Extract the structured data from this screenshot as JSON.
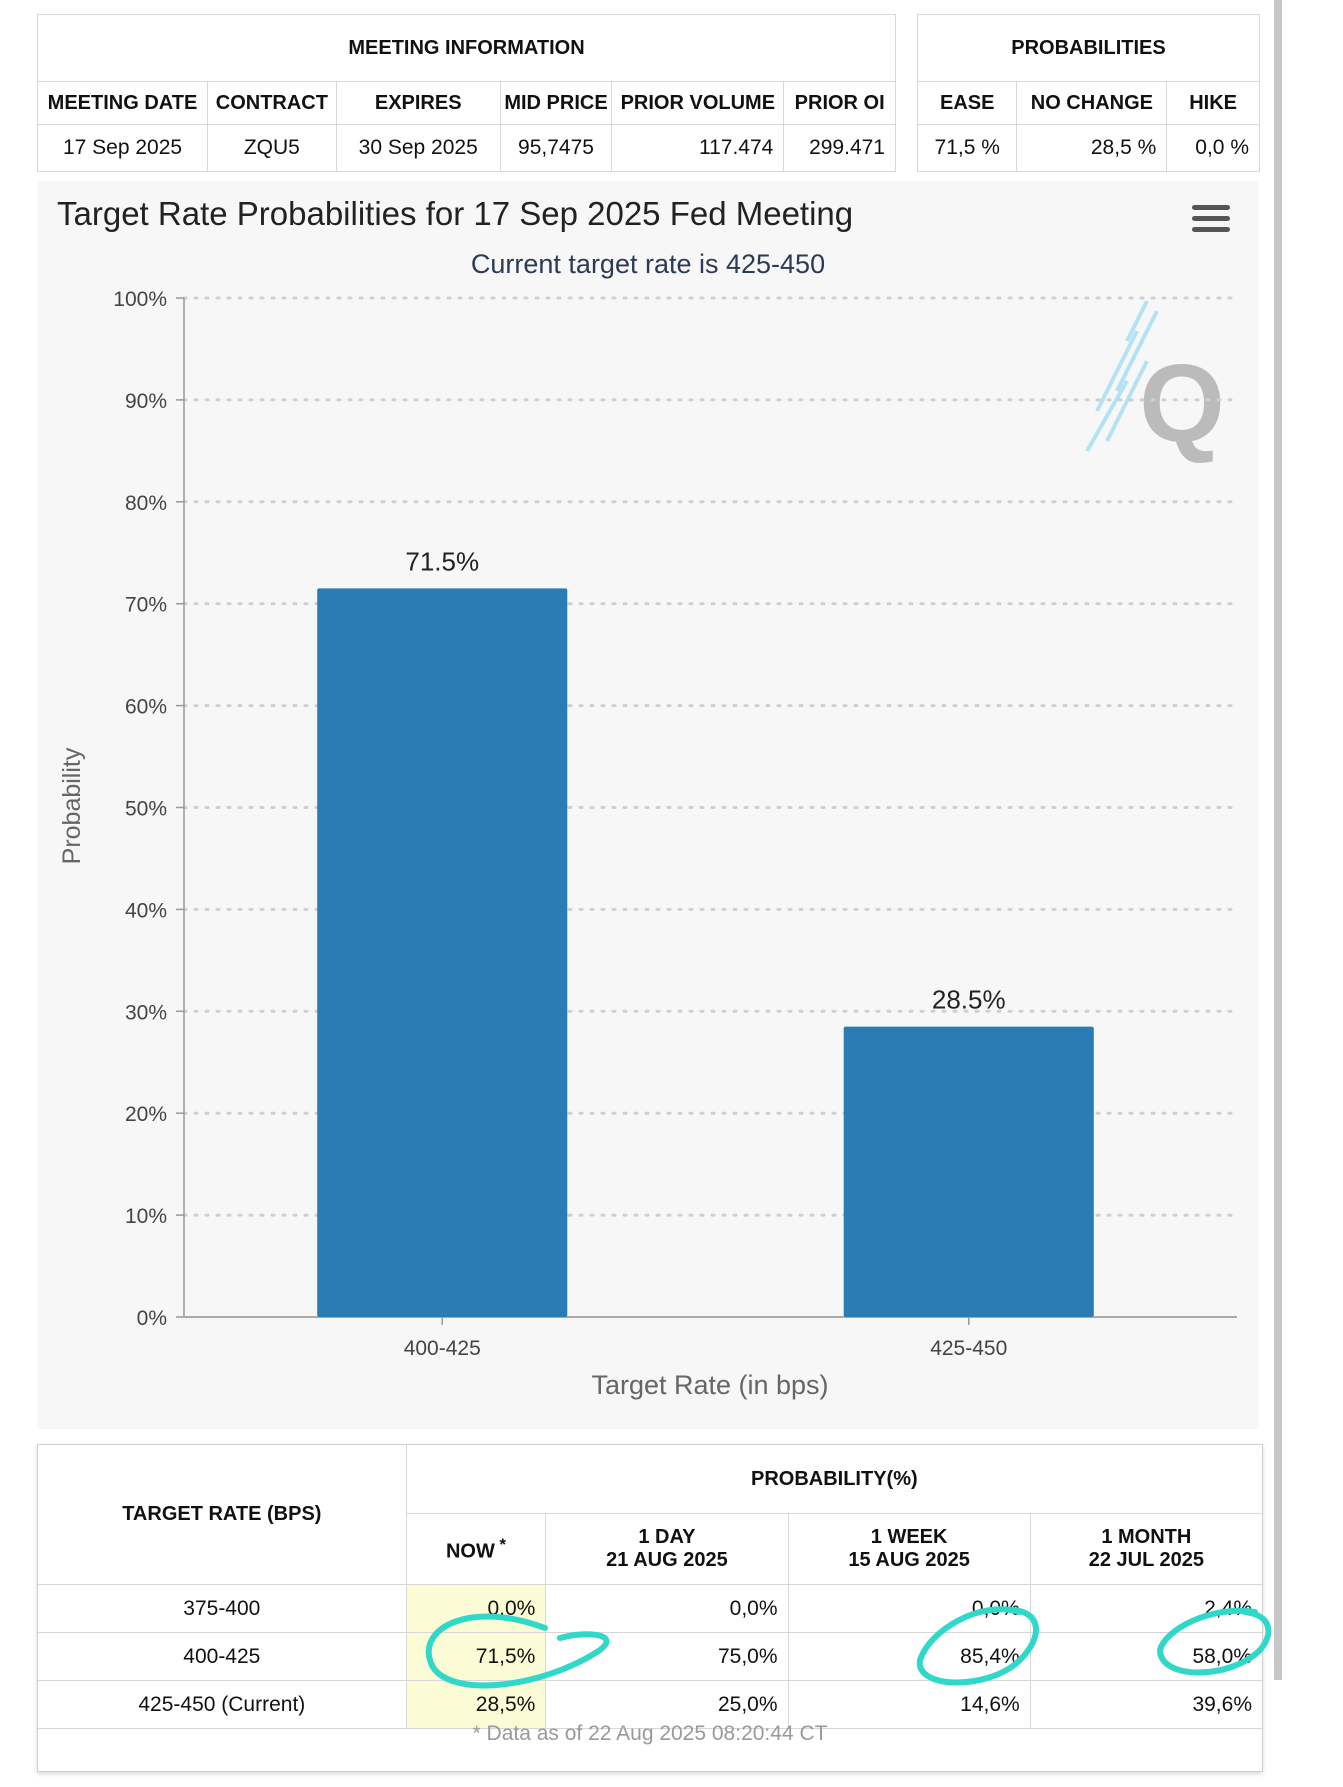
{
  "meeting_info": {
    "title": "MEETING INFORMATION",
    "headers": [
      "MEETING DATE",
      "CONTRACT",
      "EXPIRES",
      "MID PRICE",
      "PRIOR VOLUME",
      "PRIOR OI"
    ],
    "values": [
      "17 Sep 2025",
      "ZQU5",
      "30 Sep 2025",
      "95,7475",
      "117.474",
      "299.471"
    ]
  },
  "probabilities": {
    "title": "PROBABILITIES",
    "headers": [
      "EASE",
      "NO CHANGE",
      "HIKE"
    ],
    "values": [
      "71,5 %",
      "28,5 %",
      "0,0 %"
    ]
  },
  "chart_data": {
    "type": "bar",
    "title": "Target Rate Probabilities for 17 Sep 2025 Fed Meeting",
    "subtitle": "Current target rate is 425-450",
    "xlabel": "Target Rate (in bps)",
    "ylabel": "Probability",
    "categories": [
      "400-425",
      "425-450"
    ],
    "values": [
      71.5,
      28.5
    ],
    "data_labels": [
      "71.5%",
      "28.5%"
    ],
    "ylim": [
      0,
      100
    ],
    "yticks": [
      "0%",
      "10%",
      "20%",
      "30%",
      "40%",
      "50%",
      "60%",
      "70%",
      "80%",
      "90%",
      "100%"
    ],
    "grid": true,
    "bar_color": "#2b7bb5"
  },
  "prob_table": {
    "target_rate_header": "TARGET RATE (BPS)",
    "probability_header": "PROBABILITY(%)",
    "columns": [
      {
        "line1": "NOW",
        "marker": "*",
        "line2": ""
      },
      {
        "line1": "1 DAY",
        "line2": "21 AUG 2025"
      },
      {
        "line1": "1 WEEK",
        "line2": "15 AUG 2025"
      },
      {
        "line1": "1 MONTH",
        "line2": "22 JUL 2025"
      }
    ],
    "rows": [
      {
        "rate": "375-400",
        "values": [
          "0,0%",
          "0,0%",
          "0,0%",
          "2,4%"
        ]
      },
      {
        "rate": "400-425",
        "values": [
          "71,5%",
          "75,0%",
          "85,4%",
          "58,0%"
        ]
      },
      {
        "rate": "425-450 (Current)",
        "values": [
          "28,5%",
          "25,0%",
          "14,6%",
          "39,6%"
        ]
      }
    ],
    "footnote": "* Data as of 22 Aug 2025 08:20:44 CT",
    "highlight_color": "#2fd8c8"
  }
}
